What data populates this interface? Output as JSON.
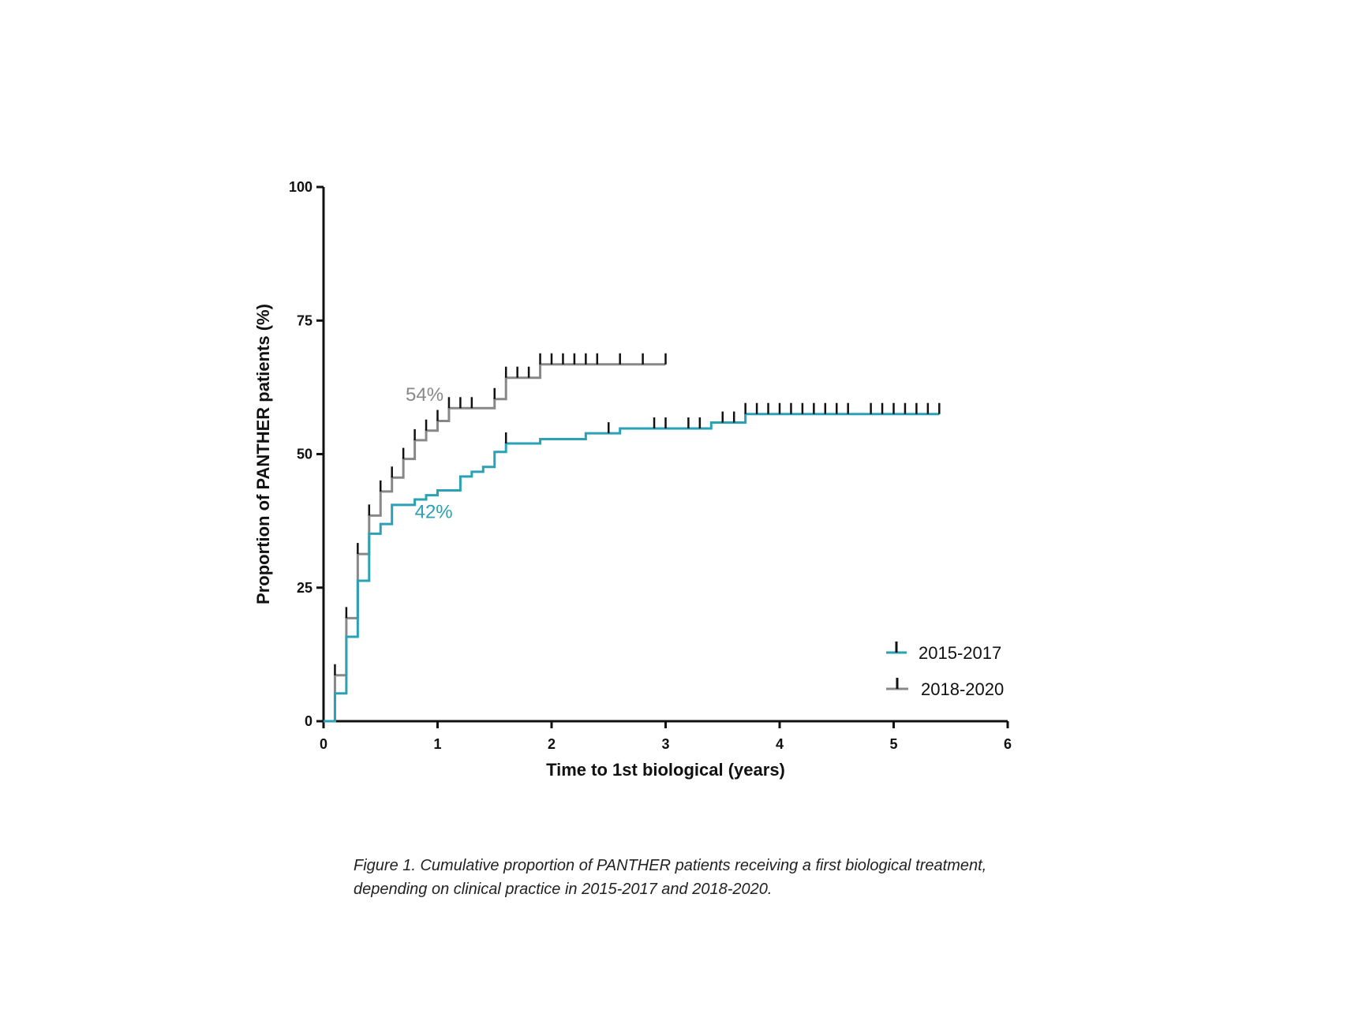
{
  "chart_data": {
    "type": "line",
    "step": true,
    "xlabel": "Time to 1st biological (years)",
    "ylabel": "Proportion of  PANTHER patients (%)",
    "xlim": [
      0,
      6
    ],
    "ylim": [
      0,
      100
    ],
    "x_ticks": [
      0,
      1,
      2,
      3,
      4,
      5,
      6
    ],
    "y_ticks": [
      0,
      25,
      50,
      75,
      100
    ],
    "grid": false,
    "legend_position": "bottom-right",
    "series": [
      {
        "name": "2015-2017",
        "color": "#2aa1b5",
        "steps": [
          [
            0,
            0
          ],
          [
            0.1,
            5.2
          ],
          [
            0.2,
            15.8
          ],
          [
            0.3,
            26.3
          ],
          [
            0.4,
            35.1
          ],
          [
            0.5,
            36.9
          ],
          [
            0.6,
            40.5
          ],
          [
            0.8,
            41.5
          ],
          [
            0.9,
            42.3
          ],
          [
            1.0,
            43.2
          ],
          [
            1.2,
            45.8
          ],
          [
            1.3,
            46.7
          ],
          [
            1.4,
            47.6
          ],
          [
            1.5,
            50.4
          ],
          [
            1.6,
            52.0
          ],
          [
            1.9,
            52.8
          ],
          [
            2.3,
            53.9
          ],
          [
            2.6,
            54.8
          ],
          [
            3.4,
            55.9
          ],
          [
            3.7,
            57.5
          ],
          [
            5.4,
            57.5
          ]
        ],
        "censored": [
          1.6,
          2.5,
          2.9,
          3.0,
          3.2,
          3.3,
          3.5,
          3.6,
          3.7,
          3.8,
          3.9,
          4.0,
          4.1,
          4.2,
          4.3,
          4.4,
          4.5,
          4.6,
          4.8,
          4.9,
          5.0,
          5.1,
          5.2,
          5.3,
          5.4
        ]
      },
      {
        "name": "2018-2020",
        "color": "#888888",
        "steps": [
          [
            0,
            0
          ],
          [
            0.1,
            8.6
          ],
          [
            0.2,
            19.3
          ],
          [
            0.3,
            31.3
          ],
          [
            0.4,
            38.5
          ],
          [
            0.5,
            43.0
          ],
          [
            0.6,
            45.6
          ],
          [
            0.7,
            49.1
          ],
          [
            0.8,
            52.6
          ],
          [
            0.9,
            54.4
          ],
          [
            1.0,
            56.2
          ],
          [
            1.1,
            58.6
          ],
          [
            1.5,
            60.3
          ],
          [
            1.6,
            64.3
          ],
          [
            1.9,
            66.8
          ],
          [
            3.0,
            66.8
          ]
        ],
        "censored": [
          0.1,
          0.2,
          0.3,
          0.4,
          0.5,
          0.6,
          0.7,
          0.8,
          0.9,
          1.0,
          1.1,
          1.2,
          1.3,
          1.5,
          1.6,
          1.7,
          1.8,
          1.9,
          2.0,
          2.1,
          2.2,
          2.3,
          2.4,
          2.6,
          2.8,
          3.0
        ]
      }
    ],
    "annotations": [
      {
        "text": "54%",
        "x": 0.72,
        "y": 60,
        "color": "#888888"
      },
      {
        "text": "42%",
        "x": 0.8,
        "y": 38,
        "color": "#2aa1b5"
      }
    ]
  },
  "caption": {
    "line1": "Figure 1. Cumulative proportion of PANTHER patients receiving a first biological treatment,",
    "line2": "depending on clinical practice in 2015-2017 and 2018-2020."
  }
}
